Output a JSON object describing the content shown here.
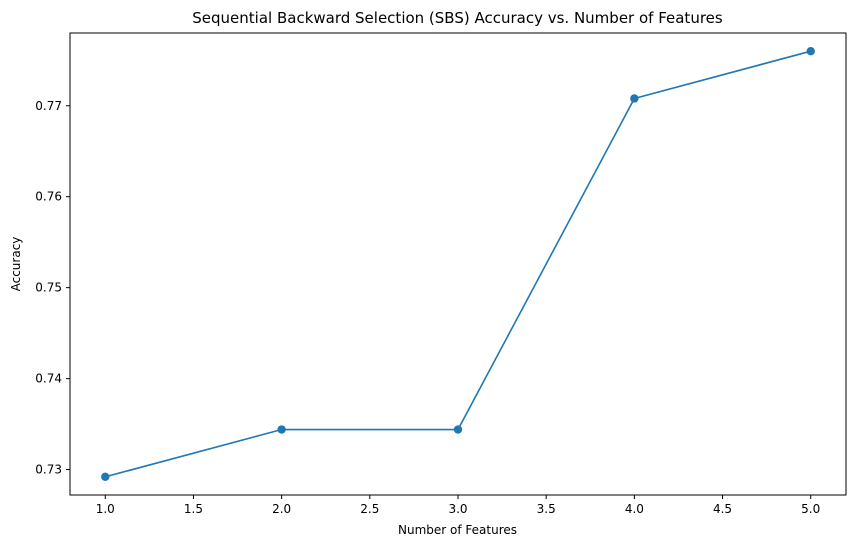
{
  "chart_data": {
    "type": "line",
    "title": "Sequential Backward Selection (SBS) Accuracy vs. Number of Features",
    "xlabel": "Number of Features",
    "ylabel": "Accuracy",
    "xlim": [
      0.8,
      5.2
    ],
    "ylim": [
      0.7272,
      0.778
    ],
    "x_ticks": [
      1.0,
      1.5,
      2.0,
      2.5,
      3.0,
      3.5,
      4.0,
      4.5,
      5.0
    ],
    "x_tick_labels": [
      "1.0",
      "1.5",
      "2.0",
      "2.5",
      "3.0",
      "3.5",
      "4.0",
      "4.5",
      "5.0"
    ],
    "y_ticks": [
      0.73,
      0.74,
      0.75,
      0.76,
      0.77
    ],
    "y_tick_labels": [
      "0.73",
      "0.74",
      "0.75",
      "0.76",
      "0.77"
    ],
    "grid": false,
    "legend": "none",
    "series": [
      {
        "x": [
          1,
          2,
          3,
          4,
          5
        ],
        "values": [
          0.7292,
          0.7344,
          0.7344,
          0.7708,
          0.776
        ],
        "color": "#1f77b4",
        "marker": "circle"
      }
    ]
  }
}
